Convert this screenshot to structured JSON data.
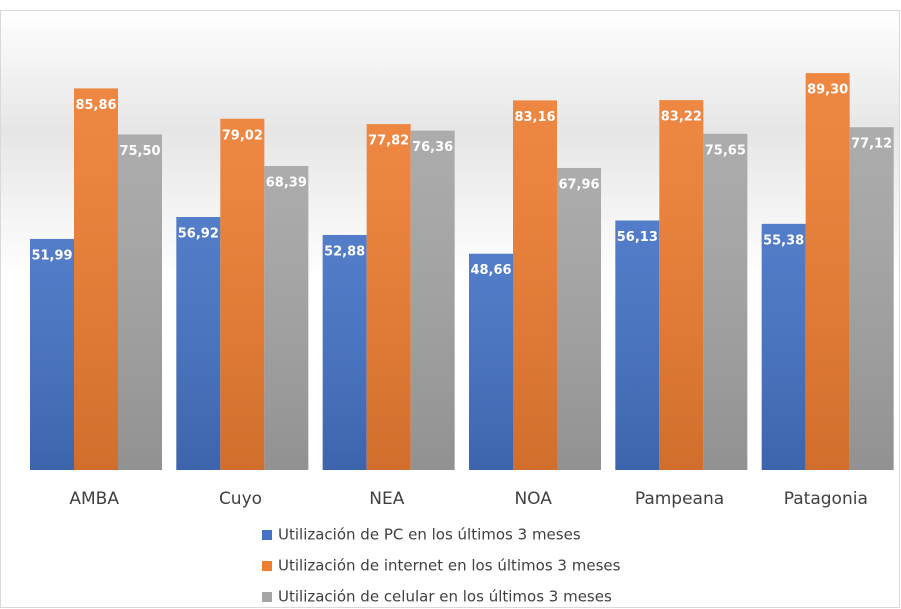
{
  "chart_data": {
    "type": "bar",
    "categories": [
      "AMBA",
      "Cuyo",
      "NEA",
      "NOA",
      "Pampeana",
      "Patagonia"
    ],
    "series": [
      {
        "name": "Utilización de PC en los últimos 3 meses",
        "color": "#4472c4",
        "values": [
          51.99,
          56.92,
          52.88,
          48.66,
          56.13,
          55.38
        ],
        "value_labels": [
          "51,99",
          "56,92",
          "52,88",
          "48,66",
          "56,13",
          "55,38"
        ]
      },
      {
        "name": "Utilización de internet en los últimos 3 meses",
        "color": "#ed7d31",
        "values": [
          85.86,
          79.02,
          77.82,
          83.16,
          83.22,
          89.3
        ],
        "value_labels": [
          "85,86",
          "79,02",
          "77,82",
          "83,16",
          "83,22",
          "89,30"
        ]
      },
      {
        "name": "Utilización de celular en los últimos 3 meses",
        "color": "#a5a5a5",
        "values": [
          75.5,
          68.39,
          76.36,
          67.96,
          75.65,
          77.12
        ],
        "value_labels": [
          "75,50",
          "68,39",
          "76,36",
          "67,96",
          "75,65",
          "77,12"
        ]
      }
    ],
    "ylim": [
      0,
      90
    ]
  }
}
